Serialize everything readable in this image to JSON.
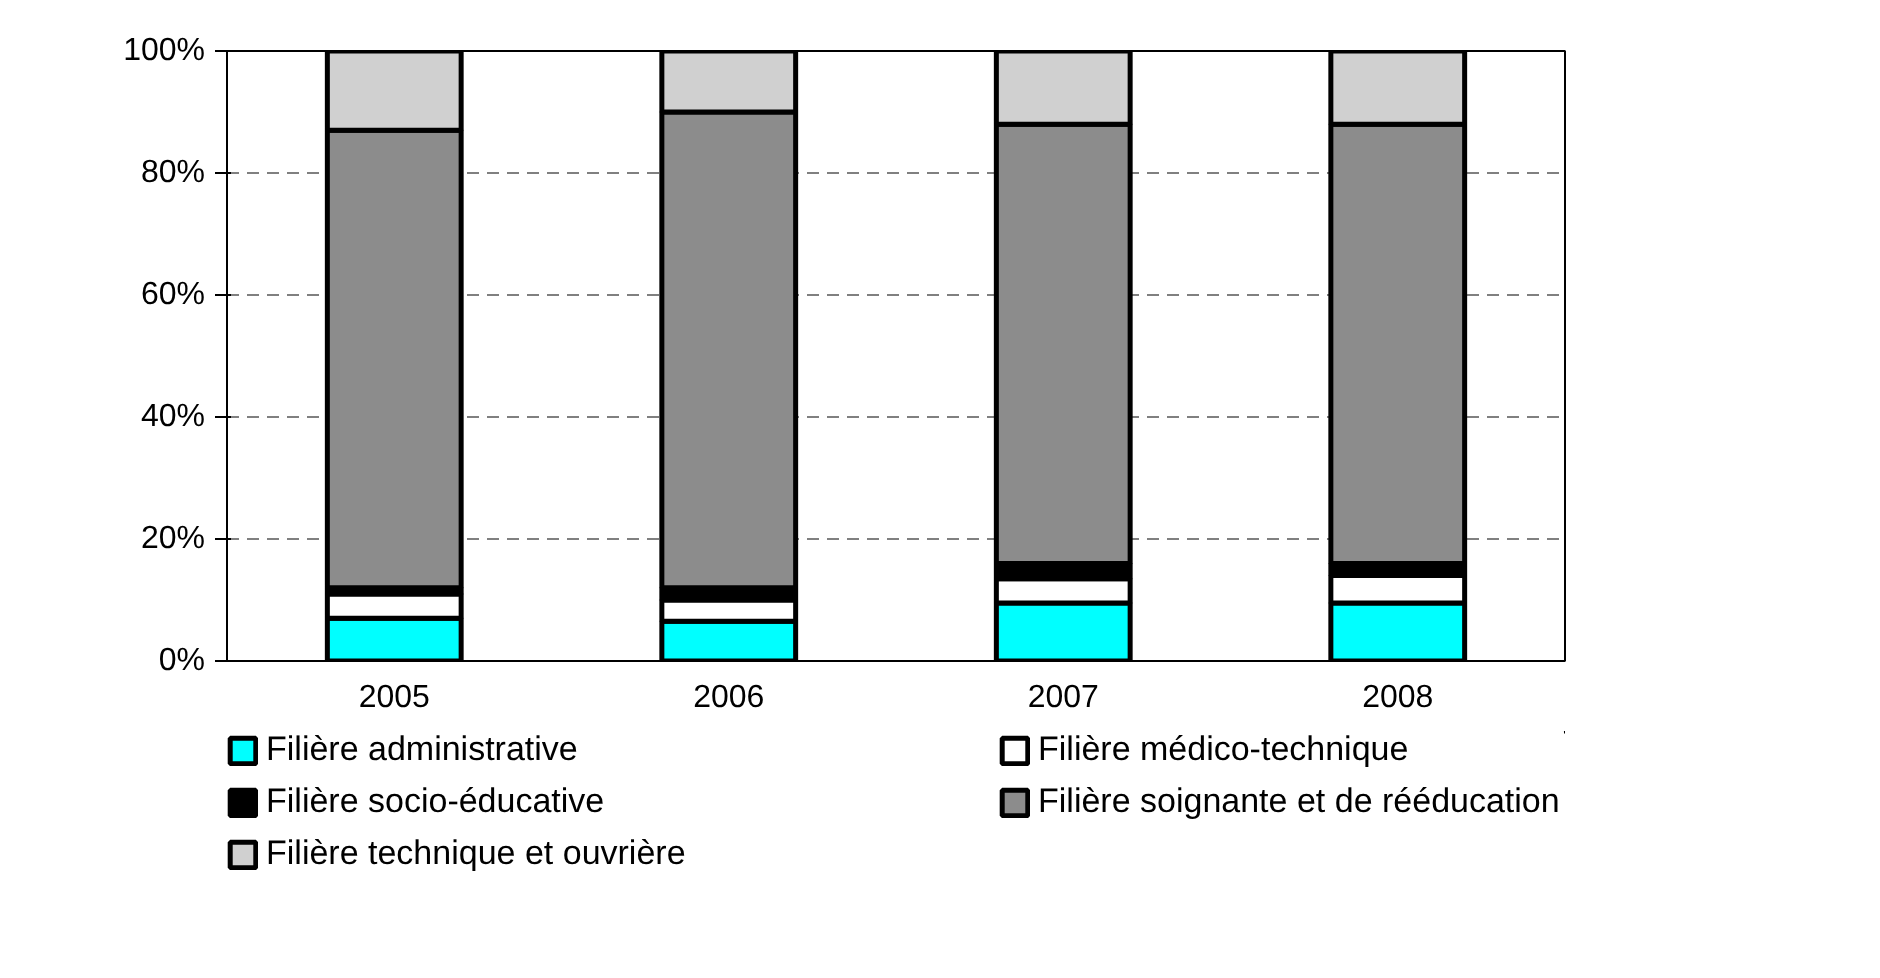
{
  "chart_data": {
    "type": "bar",
    "stacked": true,
    "categories": [
      "2005",
      "2006",
      "2007",
      "2008"
    ],
    "series": [
      {
        "name": "Filière administrative",
        "color": "#00ffff",
        "values": [
          7,
          6.5,
          9.5,
          9.5
        ]
      },
      {
        "name": "Filière médico-technique",
        "color": "#ffffff",
        "values": [
          4,
          3.5,
          4,
          4.5
        ]
      },
      {
        "name": "Filière socio-éducative",
        "color": "#000000",
        "values": [
          1,
          2,
          2.5,
          2
        ]
      },
      {
        "name": "Filière soignante et de rééducation",
        "color": "#8c8c8c",
        "values": [
          75,
          78,
          72,
          72
        ]
      },
      {
        "name": "Filière technique et ouvrière",
        "color": "#d0d0d0",
        "values": [
          13,
          10,
          12,
          12
        ]
      }
    ],
    "ylim": [
      0,
      100
    ],
    "yticks": [
      {
        "value": 0,
        "label": "0%"
      },
      {
        "value": 20,
        "label": "20%"
      },
      {
        "value": 40,
        "label": "40%"
      },
      {
        "value": 60,
        "label": "60%"
      },
      {
        "value": 80,
        "label": "80%"
      },
      {
        "value": 100,
        "label": "100%"
      }
    ],
    "grid": "y",
    "legend": "bottom"
  }
}
